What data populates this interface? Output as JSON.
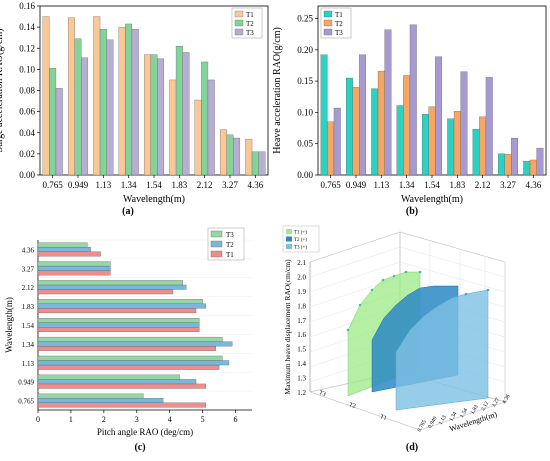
{
  "colors": {
    "T1": "#f9c896",
    "T2": "#83d39a",
    "T3": "#b8add3",
    "cyanT1": "#2bd1c2",
    "orangeT2": "#f7a563",
    "purpleT3": "#a69ad1",
    "redT1": "#f08c8c",
    "blueT2": "#77b8dc",
    "greenT3": "#95d6a4",
    "green3d": "#9bea86",
    "blue3d": "#2b88c4",
    "lightblue3d": "#7dc0e3"
  },
  "chart_data": [
    {
      "type": "bar",
      "panel": "(a)",
      "xlabel": "Wavelength(m)",
      "ylabel": "Surge acceleration RAO(g/cm)",
      "categories": [
        "0.765",
        "0.949",
        "1.13",
        "1.34",
        "1.54",
        "1.83",
        "2.12",
        "3.27",
        "4.36"
      ],
      "ylim": [
        0.0,
        0.16
      ],
      "yticks": [
        "0.00",
        "0.02",
        "0.04",
        "0.06",
        "0.08",
        "0.10",
        "0.12",
        "0.14",
        "0.16"
      ],
      "legend": "top-right",
      "series": [
        {
          "name": "T1",
          "values": [
            0.15,
            0.149,
            0.15,
            0.14,
            0.114,
            0.09,
            0.071,
            0.043,
            0.034
          ]
        },
        {
          "name": "T2",
          "values": [
            0.101,
            0.129,
            0.138,
            0.143,
            0.114,
            0.122,
            0.107,
            0.038,
            0.022
          ]
        },
        {
          "name": "T3",
          "values": [
            0.082,
            0.111,
            0.128,
            0.138,
            0.11,
            0.116,
            0.09,
            0.035,
            0.022
          ]
        }
      ]
    },
    {
      "type": "bar",
      "panel": "(b)",
      "xlabel": "Wavelength(m)",
      "ylabel": "Heave acceleration RAO(g/cm)",
      "categories": [
        "0.765",
        "0.949",
        "1.13",
        "1.34",
        "1.54",
        "1.83",
        "2.12",
        "3.27",
        "4.36"
      ],
      "ylim": [
        0.0,
        0.27
      ],
      "yticks": [
        "0.00",
        "0.05",
        "0.10",
        "0.15",
        "0.20",
        "0.25"
      ],
      "legend": "top-left",
      "series": [
        {
          "name": "T1",
          "values": [
            0.192,
            0.155,
            0.138,
            0.111,
            0.097,
            0.09,
            0.073,
            0.034,
            0.022
          ]
        },
        {
          "name": "T2",
          "values": [
            0.085,
            0.14,
            0.166,
            0.159,
            0.109,
            0.102,
            0.093,
            0.033,
            0.024
          ]
        },
        {
          "name": "T3",
          "values": [
            0.107,
            0.192,
            0.232,
            0.24,
            0.189,
            0.165,
            0.156,
            0.059,
            0.043
          ]
        }
      ]
    },
    {
      "type": "barh",
      "panel": "(c)",
      "xlabel": "Pitch angle RAO (deg/cm)",
      "ylabel": "Wavelength(m)",
      "categories": [
        "0.765",
        "0.949",
        "1.13",
        "1.34",
        "1.54",
        "1.83",
        "2.12",
        "3.27",
        "4.36"
      ],
      "xlim": [
        0,
        6.5
      ],
      "xticks": [
        "0",
        "1",
        "2",
        "3",
        "4",
        "5",
        "6"
      ],
      "legend": "top-right",
      "series": [
        {
          "name": "T1",
          "values": [
            5.1,
            5.1,
            5.5,
            5.4,
            4.9,
            4.8,
            4.1,
            2.2,
            1.9
          ]
        },
        {
          "name": "T2",
          "values": [
            3.8,
            4.8,
            5.8,
            5.9,
            4.9,
            5.1,
            4.5,
            2.2,
            1.6
          ]
        },
        {
          "name": "T3",
          "values": [
            3.2,
            4.3,
            5.6,
            5.6,
            4.9,
            5.0,
            4.4,
            2.2,
            1.5
          ]
        }
      ]
    },
    {
      "type": "surface3d",
      "panel": "(d)",
      "zlabel": "Maximum heave displacement RAO(cm/cm)",
      "xlabel": "Wavelength(m)",
      "zticks": [
        "1.2",
        "1.3",
        "1.4",
        "1.5",
        "1.6",
        "1.7",
        "1.8",
        "1.9",
        "2.0",
        "2.1"
      ],
      "xticks": [
        "0.765",
        "0.949",
        "1.13",
        "1.34",
        "1.54",
        "1.83",
        "2.12",
        "3.27",
        "4.36"
      ],
      "depth_ticks": [
        "T1",
        "T2",
        "T3"
      ],
      "legend": {
        "T1": "T1 (+)",
        "T2": "T2 (+)",
        "T3": "T3 (+)"
      }
    }
  ],
  "figure": {
    "panel_labels": [
      "(a)",
      "(b)",
      "(c)",
      "(d)"
    ]
  }
}
